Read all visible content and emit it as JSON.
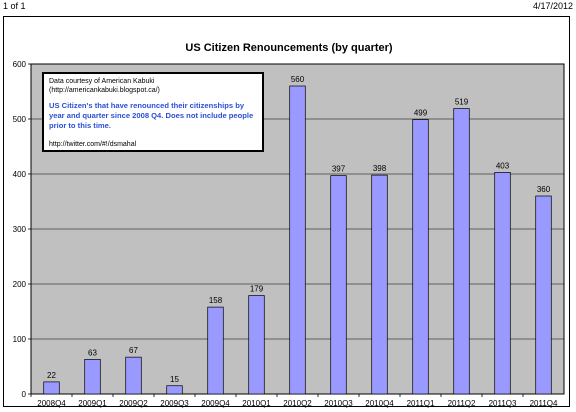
{
  "page_header": {
    "page_count": "1 of 1",
    "print_date": "4/17/2012"
  },
  "note": {
    "credit": "Data courtesy of American Kabuki (http://americankabuki.blogspot.ca/)",
    "body": "US Citizen's that have renounced their citizenships by year and quarter since 2008 Q4.  Does not include people prior to this time.",
    "link": "http://twitter.com/#!/dsmahal"
  },
  "colors": {
    "bar_fill": "#9999ff",
    "plot_background": "#c0c0c0",
    "note_body_text": "#2a4fd6"
  },
  "chart_data": {
    "type": "bar",
    "title": "US Citizen Renouncements (by quarter)",
    "xlabel": "",
    "ylabel": "",
    "categories": [
      "2008Q4",
      "2009Q1",
      "2009Q2",
      "2009Q3",
      "2009Q4",
      "2010Q1",
      "2010Q2",
      "2010Q3",
      "2010Q4",
      "2011Q1",
      "2011Q2",
      "2011Q3",
      "2011Q4"
    ],
    "values": [
      22,
      63,
      67,
      15,
      158,
      179,
      560,
      397,
      398,
      499,
      519,
      403,
      360
    ],
    "data_labels": [
      "22",
      "63",
      "67",
      "15",
      "158",
      "179",
      "560",
      "397",
      "398",
      "499",
      "519",
      "403",
      "360"
    ],
    "ylim": [
      0,
      600
    ],
    "yticks": [
      "0",
      "100",
      "200",
      "300",
      "400",
      "500",
      "600"
    ],
    "grid": "horizontal",
    "legend": "none"
  }
}
